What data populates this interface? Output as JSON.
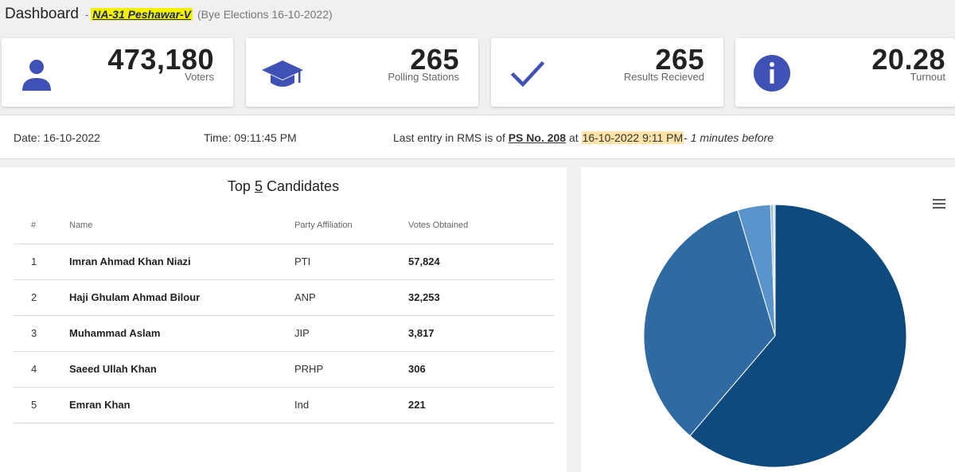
{
  "header": {
    "title": "Dashboard",
    "separator": "-",
    "constituency": "NA-31 Peshawar-V",
    "election": "(Bye Elections 16-10-2022)"
  },
  "cards": [
    {
      "value": "473,180",
      "label": "Voters",
      "icon": "person-icon"
    },
    {
      "value": "265",
      "label": "Polling Stations",
      "icon": "graduation-cap-icon"
    },
    {
      "value": "265",
      "label": "Results Recieved",
      "icon": "checkmark-icon"
    },
    {
      "value": "20.28",
      "label": "Turnout",
      "icon": "info-icon"
    }
  ],
  "info": {
    "date": "Date: 16-10-2022",
    "time": "Time: 09:11:45 PM",
    "last_prefix": "Last entry in RMS is of",
    "ps": "PS No. 208",
    "at": "at",
    "timestamp": "16-10-2022 9:11 PM",
    "dash": "-",
    "ago": "1 minutes before"
  },
  "table": {
    "title_prefix": "Top",
    "title_num": "5",
    "title_suffix": "Candidates",
    "headers": [
      "#",
      "Name",
      "Party Affiliation",
      "Votes Obtained"
    ],
    "rows": [
      {
        "num": "1",
        "name": "Imran Ahmad Khan Niazi",
        "party": "PTI",
        "votes": "57,824"
      },
      {
        "num": "2",
        "name": "Haji Ghulam Ahmad Bilour",
        "party": "ANP",
        "votes": "32,253"
      },
      {
        "num": "3",
        "name": "Muhammad Aslam",
        "party": "JIP",
        "votes": "3,817"
      },
      {
        "num": "4",
        "name": "Saeed Ullah Khan",
        "party": "PRHP",
        "votes": "306"
      },
      {
        "num": "5",
        "name": "Emran Khan",
        "party": "Ind",
        "votes": "221"
      }
    ]
  },
  "colors": {
    "accent": "#3f51b5",
    "pie": [
      "#0f4a7e",
      "#2f6aa3",
      "#5b93cc",
      "#8fb6e0",
      "#c4d9ef"
    ]
  },
  "chart_data": {
    "type": "pie",
    "categories": [
      "PTI",
      "ANP",
      "JIP",
      "PRHP",
      "Ind"
    ],
    "values": [
      57824,
      32253,
      3817,
      306,
      221
    ],
    "title": "",
    "legend": "none"
  }
}
